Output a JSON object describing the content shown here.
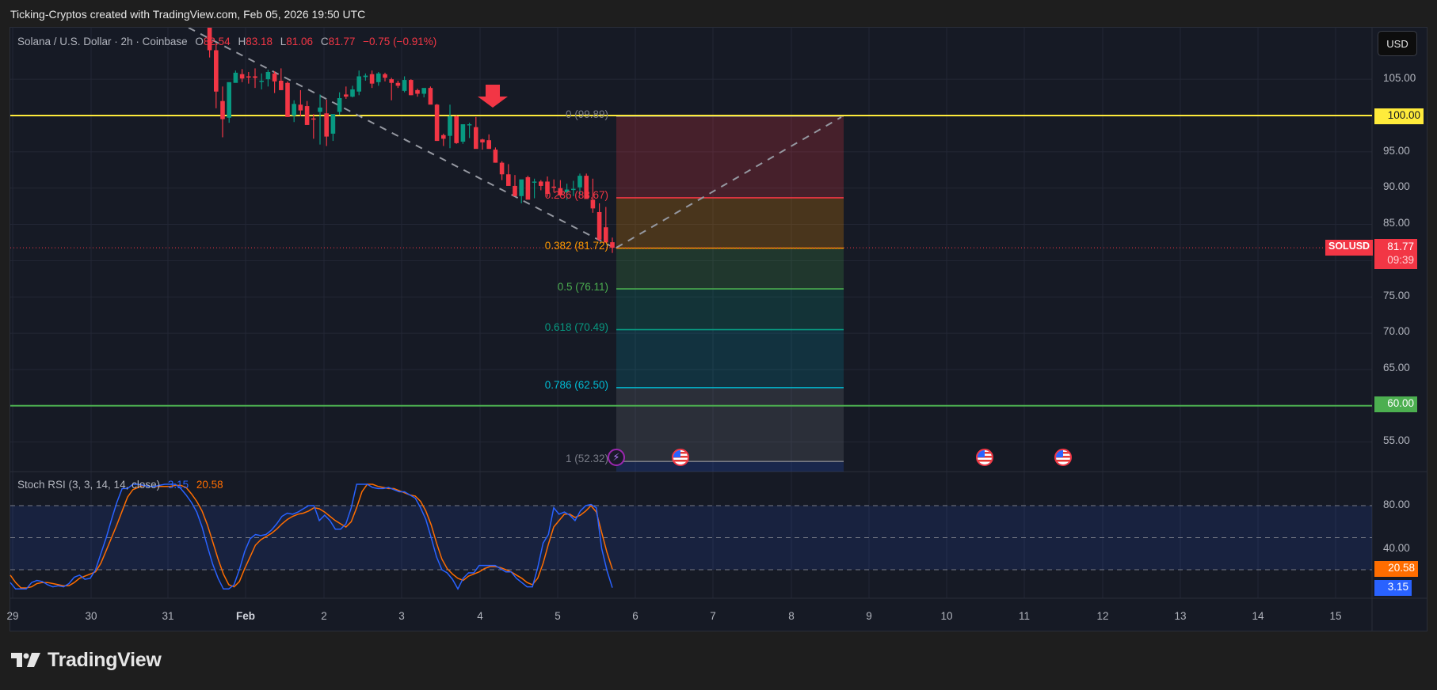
{
  "caption": "Ticking-Cryptos created with TradingView.com, Feb 05, 2026 19:50 UTC",
  "symbol_legend": {
    "title": "Solana / U.S. Dollar · 2h · Coinbase",
    "open_label": "O",
    "open": "82.54",
    "high_label": "H",
    "high": "83.18",
    "low_label": "L",
    "low": "81.06",
    "close_label": "C",
    "close": "81.77",
    "change": "−0.75 (−0.91%)"
  },
  "currency_button": "USD",
  "price_axis": {
    "ticks": [
      "105.00",
      "100.00",
      "95.00",
      "90.00",
      "85.00",
      "75.00",
      "70.00",
      "65.00",
      "60.00",
      "55.00"
    ],
    "tags": {
      "resistance": {
        "value": "100.00",
        "color": "#ffeb3b"
      },
      "support": {
        "value": "60.00",
        "color": "#4caf50"
      },
      "symbol": "SOLUSD",
      "last_price": "81.77",
      "countdown": "09:39",
      "last_color": "#f23645"
    }
  },
  "stoch_legend": {
    "title": "Stoch RSI (3, 3, 14, 14, close)",
    "k": "3.15",
    "d": "20.58",
    "k_color": "#2962ff",
    "d_color": "#ff6d00"
  },
  "stoch_axis": {
    "ticks": [
      "80.00",
      "40.00"
    ],
    "k_tag": "3.15",
    "d_tag": "20.58"
  },
  "time_axis": [
    "29",
    "30",
    "31",
    "Feb",
    "2",
    "3",
    "4",
    "5",
    "6",
    "7",
    "8",
    "9",
    "10",
    "11",
    "12",
    "13",
    "14",
    "15"
  ],
  "fib_levels": [
    {
      "label": "0 (99.89)",
      "ratio": 0,
      "price": 99.89,
      "color": "#787b86"
    },
    {
      "label": "0.236 (88.67)",
      "ratio": 0.236,
      "price": 88.67,
      "color": "#f23645"
    },
    {
      "label": "0.382 (81.72)",
      "ratio": 0.382,
      "price": 81.72,
      "color": "#ff9800"
    },
    {
      "label": "0.5 (76.11)",
      "ratio": 0.5,
      "price": 76.11,
      "color": "#4caf50"
    },
    {
      "label": "0.618 (70.49)",
      "ratio": 0.618,
      "price": 70.49,
      "color": "#089981"
    },
    {
      "label": "0.786 (62.50)",
      "ratio": 0.786,
      "price": 62.5,
      "color": "#00bcd4"
    },
    {
      "label": "1 (52.32)",
      "ratio": 1,
      "price": 52.32,
      "color": "#787b86"
    }
  ],
  "footer_brand": "TradingView",
  "chart_data": {
    "type": "candlestick",
    "title": "Solana / U.S. Dollar · 2h · Coinbase",
    "symbol": "SOLUSD",
    "timeframe": "2h",
    "ylabel": "USD",
    "ylim": [
      51,
      108
    ],
    "x_ticks": [
      "29",
      "30",
      "31",
      "Feb",
      "2",
      "3",
      "4",
      "5",
      "6",
      "7",
      "8",
      "9",
      "10",
      "11",
      "12",
      "13",
      "14",
      "15"
    ],
    "last": {
      "open": 82.54,
      "high": 83.18,
      "low": 81.06,
      "close": 81.77,
      "change": -0.75,
      "change_pct": -0.91
    },
    "horizontal_lines": [
      {
        "price": 100.0,
        "color": "#ffeb3b",
        "label": "100.00"
      },
      {
        "price": 60.0,
        "color": "#4caf50",
        "label": "60.00"
      }
    ],
    "candles_ohlc": [
      [
        117,
        118,
        108,
        109
      ],
      [
        109,
        110,
        101,
        103.3
      ],
      [
        102,
        104,
        97,
        99.5
      ],
      [
        99.7,
        103.5,
        99,
        104.6
      ],
      [
        104.5,
        106.2,
        104.6,
        105.9
      ],
      [
        105.7,
        106.4,
        104.6,
        105.1
      ],
      [
        105.4,
        106,
        104.4,
        105.3
      ],
      [
        105.4,
        106.5,
        103.8,
        105.2
      ],
      [
        104.7,
        105.8,
        103.6,
        104.8
      ],
      [
        105,
        106.3,
        104,
        106
      ],
      [
        105.8,
        106.1,
        103.1,
        104.7
      ],
      [
        104.8,
        106.5,
        103.5,
        103.5
      ],
      [
        104.5,
        104.7,
        99.8,
        99.8
      ],
      [
        100,
        102.1,
        99.1,
        101.6
      ],
      [
        101.5,
        103.5,
        99.9,
        100.7
      ],
      [
        101.3,
        102,
        98.7,
        98.7
      ],
      [
        99.6,
        100.2,
        96.8,
        99.5
      ],
      [
        100.5,
        102.9,
        96,
        101.1
      ],
      [
        100.3,
        102.2,
        95.8,
        97.1
      ],
      [
        97.5,
        100.1,
        96.5,
        100.2
      ],
      [
        100.5,
        103.2,
        100.1,
        102.4
      ],
      [
        102.9,
        104,
        102.3,
        102.6
      ],
      [
        102.6,
        104.1,
        102.5,
        103.6
      ],
      [
        103.3,
        106.2,
        102.8,
        105.4
      ],
      [
        105.3,
        105.8,
        104.8,
        105.5
      ],
      [
        105.7,
        106.2,
        103.8,
        104.4
      ],
      [
        104.6,
        106,
        104.1,
        105.8
      ],
      [
        105.7,
        105.9,
        104.7,
        105.2
      ],
      [
        105,
        105.2,
        102.1,
        104.5
      ],
      [
        104.5,
        104.8,
        103.8,
        104.1
      ],
      [
        103.4,
        105.4,
        103.2,
        104.9
      ],
      [
        104.9,
        105,
        102.8,
        102.8
      ],
      [
        103.5,
        103.7,
        102.6,
        103
      ],
      [
        103,
        103.4,
        102.5,
        103.8
      ],
      [
        103.8,
        104,
        101.7,
        101.5
      ],
      [
        101.5,
        101.6,
        96.5,
        96.5
      ],
      [
        97.3,
        97.5,
        95.8,
        96.8
      ],
      [
        97.2,
        101.5,
        95.5,
        99.9
      ],
      [
        99.9,
        100,
        96.1,
        96.2
      ],
      [
        96.4,
        98.6,
        96.1,
        98.8
      ],
      [
        98.8,
        99,
        96.9,
        98.8
      ],
      [
        98.4,
        99.8,
        95.6,
        95.4
      ],
      [
        96.7,
        96.8,
        95.3,
        96.3
      ],
      [
        96.6,
        97.4,
        95.4,
        95.4
      ],
      [
        95.3,
        95.6,
        93.5,
        93.5
      ],
      [
        93.5,
        93.7,
        91.1,
        91.9
      ],
      [
        91.9,
        93.3,
        91.2,
        90.3
      ],
      [
        90.3,
        91.8,
        90,
        88.9
      ],
      [
        88.9,
        90.1,
        87.9,
        91.2
      ],
      [
        91.5,
        91.7,
        88.6,
        88.4
      ],
      [
        90.8,
        91.3,
        88.6,
        90.9
      ],
      [
        90.9,
        91.1,
        89.7,
        90.3
      ],
      [
        90.9,
        91.6,
        88.8,
        89.2
      ],
      [
        90.2,
        91.2,
        89.4,
        90.1
      ],
      [
        90,
        91.1,
        88.8,
        89
      ],
      [
        89.4,
        90.6,
        88.4,
        89.8
      ],
      [
        89.8,
        91,
        88.9,
        89.9
      ],
      [
        90.1,
        92,
        89.1,
        91.7
      ],
      [
        91.7,
        92,
        88.6,
        88.5
      ],
      [
        88.4,
        91.3,
        86.6,
        87.2
      ],
      [
        86.7,
        87.9,
        82.7,
        82.9
      ],
      [
        84.6,
        87.4,
        82.9,
        82.5
      ],
      [
        82.54,
        83.18,
        81.06,
        81.77
      ]
    ],
    "stoch_rsi": {
      "params": "3, 3, 14, 14, close",
      "k_last": 3.15,
      "d_last": 20.58,
      "bands": [
        80,
        50,
        20
      ],
      "k": [
        8,
        2,
        2,
        2,
        8,
        10,
        9,
        6,
        4,
        5,
        4,
        7,
        13,
        15,
        11,
        12,
        20,
        35,
        50,
        67,
        83,
        96,
        96,
        100,
        100,
        99,
        98,
        98,
        99,
        100,
        100,
        100,
        96,
        90,
        83,
        74,
        60,
        42,
        25,
        12,
        2,
        2,
        6,
        20,
        37,
        49,
        53,
        52,
        53,
        57,
        63,
        70,
        73,
        72,
        74,
        77,
        80,
        80,
        66,
        71,
        66,
        58,
        58,
        63,
        78,
        100,
        100,
        100,
        97,
        96,
        96,
        97,
        95,
        93,
        93,
        90,
        87,
        78,
        67,
        50,
        32,
        20,
        17,
        11,
        2,
        12,
        17,
        17,
        24,
        24,
        24,
        24,
        21,
        18,
        18,
        12,
        8,
        4,
        4,
        22,
        45,
        53,
        78,
        72,
        74,
        71,
        66,
        75,
        80,
        81,
        78,
        40,
        19,
        3.15
      ],
      "d": [
        15,
        8,
        3,
        3,
        4,
        7,
        8,
        8,
        7,
        6,
        5,
        5,
        8,
        12,
        14,
        16,
        18,
        26,
        38,
        50,
        62,
        75,
        88,
        95,
        97,
        99,
        98,
        98,
        98,
        98,
        98,
        99,
        99,
        97,
        91,
        84,
        75,
        62,
        46,
        30,
        16,
        6,
        4,
        9,
        21,
        32,
        43,
        48,
        51,
        54,
        58,
        63,
        67,
        70,
        72,
        73,
        75,
        78,
        77,
        74,
        70,
        66,
        63,
        60,
        65,
        78,
        93,
        100,
        100,
        98,
        97,
        96,
        96,
        94,
        92,
        90,
        89,
        84,
        75,
        62,
        45,
        30,
        21,
        16,
        12,
        10,
        14,
        16,
        18,
        21,
        23,
        23,
        22,
        20,
        18,
        15,
        12,
        8,
        6,
        12,
        26,
        44,
        60,
        66,
        72,
        72,
        69,
        71,
        75,
        80,
        74,
        55,
        36,
        20.58
      ]
    },
    "fibonacci_retracement": {
      "from": 99.89,
      "to": 52.32,
      "levels": [
        [
          0,
          99.89
        ],
        [
          0.236,
          88.67
        ],
        [
          0.382,
          81.72
        ],
        [
          0.5,
          76.11
        ],
        [
          0.618,
          70.49
        ],
        [
          0.786,
          62.5
        ],
        [
          1,
          52.32
        ]
      ]
    },
    "annotations": [
      {
        "type": "down-arrow",
        "color": "#f23645"
      },
      {
        "type": "dashed-trendline",
        "direction": "down"
      },
      {
        "type": "dashed-trendline",
        "direction": "up-projection"
      },
      {
        "type": "event",
        "icon": "us-flag",
        "count": 3
      },
      {
        "type": "event",
        "icon": "lightning",
        "count": 1
      }
    ]
  }
}
